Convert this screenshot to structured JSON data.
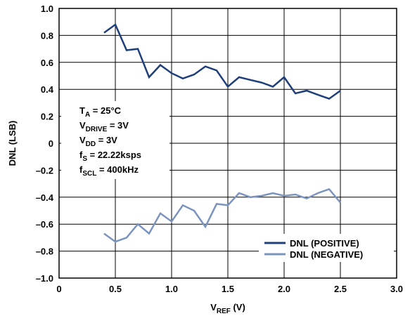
{
  "chart_data": {
    "type": "line",
    "xlabel": {
      "main": "V",
      "sub": "REF",
      "unit": " (V)"
    },
    "ylabel": "DNL (LSB)",
    "xlim": [
      0,
      3.0
    ],
    "ylim": [
      -1.0,
      1.0
    ],
    "x_ticks": [
      {
        "value": 0,
        "label": "0"
      },
      {
        "value": 0.5,
        "label": "0.5"
      },
      {
        "value": 1.0,
        "label": "1.0"
      },
      {
        "value": 1.5,
        "label": "1.5"
      },
      {
        "value": 2.0,
        "label": "2.0"
      },
      {
        "value": 2.5,
        "label": "2.5"
      },
      {
        "value": 3.0,
        "label": "3.0"
      }
    ],
    "y_ticks": [
      {
        "value": 1.0,
        "label": "1.0"
      },
      {
        "value": 0.8,
        "label": "0.8"
      },
      {
        "value": 0.6,
        "label": "0.6"
      },
      {
        "value": 0.4,
        "label": "0.4"
      },
      {
        "value": 0.2,
        "label": "0.2"
      },
      {
        "value": 0,
        "label": "0"
      },
      {
        "value": -0.2,
        "label": "–0.2"
      },
      {
        "value": -0.4,
        "label": "–0.4"
      },
      {
        "value": -0.6,
        "label": "–0.6"
      },
      {
        "value": -0.8,
        "label": "–0.8"
      },
      {
        "value": -1.0,
        "label": "–1.0"
      }
    ],
    "grid": true,
    "legend_position": "bottom-right",
    "series": [
      {
        "name": "DNL (POSITIVE)",
        "color": "#1f3f7a",
        "x": [
          0.4,
          0.5,
          0.6,
          0.7,
          0.8,
          0.9,
          1.0,
          1.1,
          1.2,
          1.3,
          1.4,
          1.5,
          1.6,
          1.7,
          1.8,
          1.9,
          2.0,
          2.1,
          2.2,
          2.3,
          2.4,
          2.5
        ],
        "y": [
          0.82,
          0.88,
          0.69,
          0.7,
          0.49,
          0.58,
          0.52,
          0.48,
          0.51,
          0.57,
          0.54,
          0.42,
          0.49,
          0.47,
          0.45,
          0.42,
          0.49,
          0.37,
          0.39,
          0.36,
          0.33,
          0.39
        ]
      },
      {
        "name": "DNL (NEGATIVE)",
        "color": "#7b94bf",
        "x": [
          0.4,
          0.5,
          0.6,
          0.7,
          0.8,
          0.9,
          1.0,
          1.1,
          1.2,
          1.3,
          1.4,
          1.5,
          1.6,
          1.7,
          1.8,
          1.9,
          2.0,
          2.1,
          2.2,
          2.3,
          2.4,
          2.5
        ],
        "y": [
          -0.67,
          -0.73,
          -0.7,
          -0.6,
          -0.67,
          -0.52,
          -0.58,
          -0.46,
          -0.5,
          -0.62,
          -0.45,
          -0.46,
          -0.37,
          -0.4,
          -0.39,
          -0.37,
          -0.39,
          -0.38,
          -0.41,
          -0.37,
          -0.34,
          -0.44
        ]
      }
    ],
    "annotations": [
      {
        "main": "T",
        "sub": "A",
        "rest": " = 25°C"
      },
      {
        "main": "V",
        "sub": "DRIVE",
        "rest": " = 3V"
      },
      {
        "main": "V",
        "sub": "DD",
        "rest": " = 3V"
      },
      {
        "main": "f",
        "sub": "S",
        "rest": " = 22.22ksps"
      },
      {
        "main": "f",
        "sub": "SCL",
        "rest": " = 400kHz"
      }
    ]
  }
}
